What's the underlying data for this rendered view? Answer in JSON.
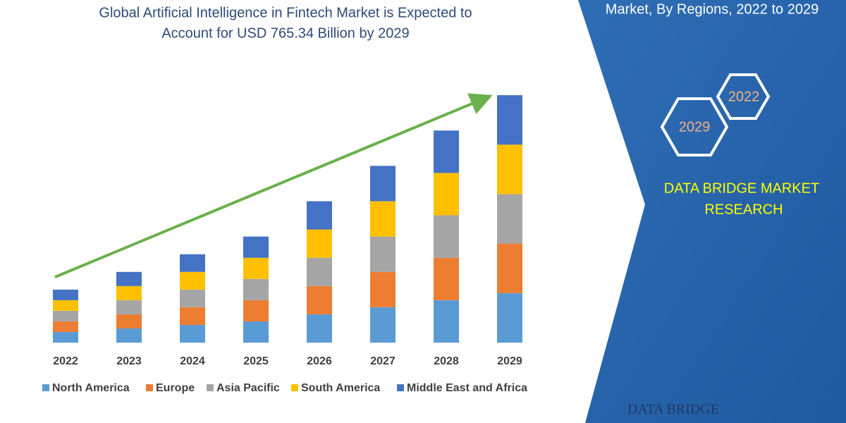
{
  "chart_data": {
    "type": "bar",
    "stacked": true,
    "title": [
      "Global Artificial Intelligence in Fintech Market is Expected to",
      "Account for USD 765.34 Billion by 2029"
    ],
    "categories": [
      "2022",
      "2023",
      "2024",
      "2025",
      "2026",
      "2027",
      "2028",
      "2029"
    ],
    "series": [
      {
        "name": "North America",
        "color": "#5b9bd5",
        "values": [
          15,
          20,
          25,
          30,
          40,
          50,
          60,
          70
        ]
      },
      {
        "name": "Europe",
        "color": "#ed7d31",
        "values": [
          15,
          20,
          25,
          30,
          40,
          50,
          60,
          70
        ]
      },
      {
        "name": "Asia Pacific",
        "color": "#a5a5a5",
        "values": [
          15,
          20,
          25,
          30,
          40,
          50,
          60,
          70
        ]
      },
      {
        "name": "South America",
        "color": "#ffc000",
        "values": [
          15,
          20,
          25,
          30,
          40,
          50,
          60,
          70
        ]
      },
      {
        "name": "Middle East and Africa",
        "color": "#4472c4",
        "values": [
          15,
          20,
          25,
          30,
          40,
          50,
          60,
          70
        ]
      }
    ],
    "ylim": [
      0,
      350
    ]
  },
  "panel": {
    "heading": "Market, By Regions, 2022 to 2029",
    "hexagons": [
      "2022",
      "2029"
    ],
    "brand": [
      "DATA BRIDGE MARKET",
      "RESEARCH"
    ],
    "logo": "DATA BRIDGE"
  }
}
